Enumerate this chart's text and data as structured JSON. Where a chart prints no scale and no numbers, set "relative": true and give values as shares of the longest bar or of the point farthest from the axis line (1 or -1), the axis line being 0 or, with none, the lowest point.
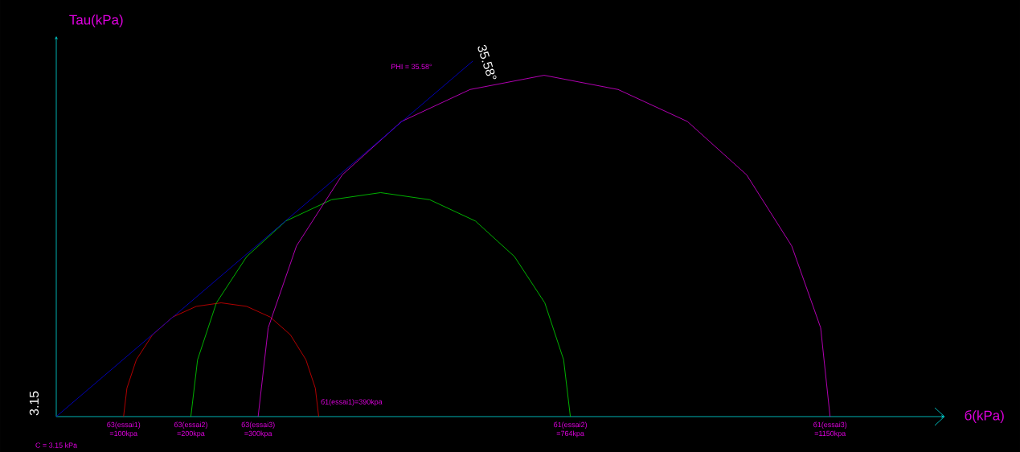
{
  "chart_data": {
    "type": "line",
    "xlabel": "б(kPa)",
    "ylabel": "Tau(kPa)",
    "relative": true,
    "marker": "none",
    "line_style": "solid",
    "tick_labels": "x",
    "xlim": [
      0,
      1320
    ],
    "xticks": [
      {
        "value": 100,
        "label": "=100kpa"
      },
      {
        "value": 200,
        "label": "=200kpa"
      },
      {
        "value": 300,
        "label": "=300kpa"
      },
      {
        "value": 764,
        "label": "=764kpa"
      },
      {
        "value": 1150,
        "label": "=1150kpa"
      }
    ],
    "series": [
      {
        "color": "#dd0000",
        "x": [
          390,
          385,
          371,
          348,
          318,
          283,
          245,
          208,
          173,
          143,
          119,
          105,
          100
        ],
        "values": [
          0,
          0.08,
          0.16,
          0.23,
          0.28,
          0.31,
          0.32,
          0.31,
          0.28,
          0.23,
          0.16,
          0.08,
          0
        ]
      },
      {
        "color": "#00dd00",
        "x": [
          764,
          754,
          726,
          681,
          623,
          555,
          482,
          409,
          341,
          283,
          238,
          210,
          200
        ],
        "values": [
          0,
          0.16,
          0.32,
          0.45,
          0.55,
          0.61,
          0.63,
          0.61,
          0.55,
          0.45,
          0.32,
          0.16,
          0
        ]
      },
      {
        "color": "#dd00dd",
        "x": [
          1150,
          1136,
          1093,
          1026,
          938,
          835,
          725,
          615,
          513,
          425,
          357,
          315,
          300
        ],
        "values": [
          0,
          0.25,
          0.48,
          0.68,
          0.83,
          0.92,
          0.96,
          0.92,
          0.83,
          0.68,
          0.48,
          0.25,
          0
        ]
      },
      {
        "color": "#0000dd",
        "x": [
          0,
          619
        ],
        "values": [
          0,
          1
        ]
      }
    ],
    "annotations": [
      {
        "text": "б1(essai1)=390kpa",
        "x": 390,
        "y": 0
      },
      "PHI = 35.58°",
      "35.58°",
      "3.15",
      "C = 3.15 kPa",
      {
        "text": "б3(essai1)",
        "x": 100,
        "y": 0
      },
      {
        "text": "б3(essai2)",
        "x": 200,
        "y": 0
      },
      {
        "text": "б3(essai3)",
        "x": 300,
        "y": 0
      },
      {
        "text": "б1(essai2)",
        "x": 764,
        "y": 0
      },
      {
        "text": "б1(essai3)",
        "x": 1150,
        "y": 0
      }
    ]
  }
}
